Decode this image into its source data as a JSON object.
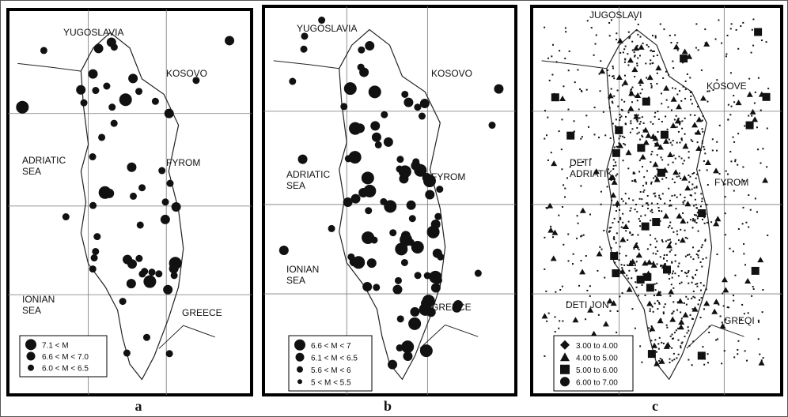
{
  "panels": [
    {
      "label": "a",
      "place_names": [
        [
          "YUGOSLAVIA"
        ],
        [
          "KOSOVO"
        ],
        [
          "ADRIATIC",
          "SEA"
        ],
        [
          "FYROM"
        ],
        [
          "IONIAN",
          "SEA"
        ],
        [
          "GREECE"
        ]
      ],
      "legend": [
        "7.1 < M",
        "6.6 < M < 7.0",
        "6.0 < M < 6.5"
      ]
    },
    {
      "label": "b",
      "place_names": [
        [
          "YUGOSLAVIA"
        ],
        [
          "KOSOVO"
        ],
        [
          "ADRIATIC",
          "SEA"
        ],
        [
          "FYROM"
        ],
        [
          "IONIAN",
          "SEA"
        ],
        [
          "GREECE"
        ]
      ],
      "legend": [
        "6.6 < M < 7",
        "6.1 < M < 6.5",
        "5.6 < M < 6",
        "5 < M < 5.5"
      ]
    },
    {
      "label": "c",
      "place_names": [
        [
          "JUGOSLAVI"
        ],
        [
          "KOSOVE"
        ],
        [
          "DETI",
          "ADRIATIK"
        ],
        [
          "FYROM"
        ],
        [
          "DETI JON"
        ],
        [
          "GREQI"
        ]
      ],
      "legend": [
        "3.00 to 4.00",
        "4.00 to 5.00",
        "5.00 to 6.00",
        "6.00 to 7.00"
      ]
    }
  ]
}
